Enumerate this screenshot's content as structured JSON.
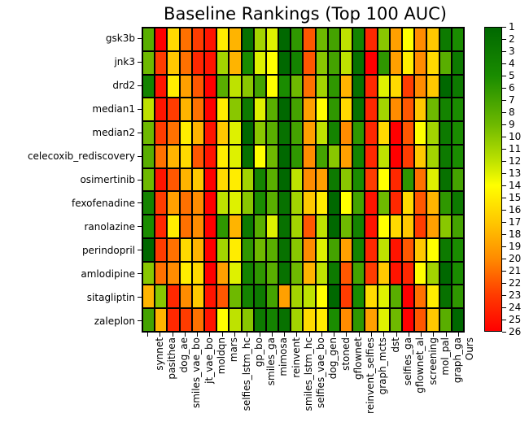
{
  "title": "Baseline Rankings (Top 100 AUC)",
  "chart_data": {
    "type": "heatmap",
    "title": "Baseline Rankings (Top 100 AUC)",
    "rows": [
      "gsk3b",
      "jnk3",
      "drd2",
      "median1",
      "median2",
      "celecoxib_rediscovery",
      "osimertinib",
      "fexofenadine",
      "ranolazine",
      "perindopril",
      "amlodipine",
      "sitagliptin",
      "zaleplon"
    ],
    "columns": [
      "synnet",
      "pasithea",
      "dog_ae",
      "smiles_vae_bo",
      "jt_vae_bo",
      "moldqn",
      "mars",
      "selfies_lstm_hc",
      "gp_bo",
      "smiles_ga",
      "mimosa",
      "reinvent",
      "smiles_lstm_hc",
      "selfies_vae_bo",
      "dog_gen",
      "stoned",
      "gflownet",
      "reinvent_selfies",
      "graph_mcts",
      "dst",
      "selfies_ga",
      "gflownet_al",
      "screening",
      "mol_pal",
      "graph_ga",
      "Ours"
    ],
    "values": [
      [
        8,
        26,
        16,
        21,
        23,
        25,
        15,
        18,
        2,
        11,
        13,
        1,
        6,
        22,
        9,
        7,
        12,
        4,
        24,
        10,
        19,
        14,
        20,
        17,
        3,
        5
      ],
      [
        9,
        23,
        17,
        21,
        24,
        25,
        11,
        18,
        5,
        13,
        14,
        1,
        4,
        22,
        10,
        7,
        12,
        2,
        26,
        6,
        19,
        15,
        20,
        16,
        8,
        3
      ],
      [
        4,
        25,
        15,
        19,
        22,
        26,
        8,
        12,
        10,
        7,
        14,
        5,
        9,
        21,
        11,
        6,
        18,
        2,
        24,
        13,
        16,
        23,
        20,
        17,
        1,
        3
      ],
      [
        12,
        25,
        23,
        18,
        21,
        26,
        15,
        10,
        3,
        13,
        8,
        1,
        7,
        19,
        14,
        6,
        16,
        2,
        24,
        11,
        20,
        22,
        17,
        9,
        4,
        5
      ],
      [
        9,
        23,
        21,
        15,
        18,
        25,
        17,
        13,
        1,
        10,
        8,
        2,
        7,
        19,
        12,
        4,
        20,
        6,
        24,
        16,
        26,
        22,
        14,
        11,
        3,
        5
      ],
      [
        8,
        21,
        18,
        16,
        22,
        25,
        15,
        13,
        2,
        14,
        9,
        1,
        6,
        20,
        7,
        10,
        19,
        4,
        24,
        12,
        26,
        23,
        17,
        11,
        3,
        5
      ],
      [
        9,
        25,
        22,
        18,
        17,
        26,
        16,
        15,
        11,
        4,
        8,
        1,
        12,
        20,
        19,
        3,
        10,
        5,
        23,
        14,
        24,
        6,
        21,
        13,
        2,
        7
      ],
      [
        4,
        23,
        19,
        21,
        20,
        26,
        12,
        13,
        10,
        5,
        8,
        2,
        11,
        17,
        15,
        1,
        14,
        7,
        25,
        9,
        24,
        16,
        22,
        18,
        6,
        3
      ],
      [
        5,
        24,
        15,
        21,
        20,
        26,
        6,
        18,
        3,
        8,
        13,
        2,
        11,
        22,
        12,
        1,
        9,
        4,
        25,
        14,
        16,
        17,
        23,
        19,
        10,
        7
      ],
      [
        1,
        23,
        21,
        16,
        18,
        26,
        11,
        15,
        6,
        9,
        8,
        2,
        10,
        20,
        13,
        7,
        19,
        4,
        24,
        12,
        25,
        22,
        17,
        14,
        3,
        5
      ],
      [
        10,
        21,
        20,
        15,
        16,
        26,
        19,
        13,
        4,
        6,
        8,
        2,
        9,
        18,
        12,
        3,
        22,
        7,
        23,
        17,
        25,
        24,
        14,
        11,
        1,
        5
      ],
      [
        18,
        10,
        24,
        20,
        17,
        25,
        22,
        9,
        4,
        3,
        7,
        19,
        11,
        12,
        14,
        1,
        23,
        5,
        16,
        13,
        8,
        26,
        21,
        15,
        2,
        6
      ],
      [
        7,
        18,
        24,
        23,
        21,
        25,
        14,
        12,
        10,
        3,
        4,
        2,
        11,
        16,
        15,
        5,
        20,
        6,
        19,
        13,
        9,
        26,
        22,
        17,
        8,
        1
      ]
    ],
    "colorbar": {
      "min": 1,
      "max": 26,
      "ticks": [
        1,
        2,
        3,
        4,
        5,
        6,
        7,
        8,
        9,
        10,
        11,
        12,
        13,
        14,
        15,
        16,
        17,
        18,
        19,
        20,
        21,
        22,
        23,
        24,
        25,
        26
      ],
      "position": "right"
    },
    "colormap": [
      {
        "t": 0.0,
        "color": "#006800"
      },
      {
        "t": 0.16,
        "color": "#1a8c00"
      },
      {
        "t": 0.32,
        "color": "#6eb900"
      },
      {
        "t": 0.44,
        "color": "#bee200"
      },
      {
        "t": 0.52,
        "color": "#ffff00"
      },
      {
        "t": 0.64,
        "color": "#ffc800"
      },
      {
        "t": 0.76,
        "color": "#ff8c00"
      },
      {
        "t": 0.88,
        "color": "#ff3c00"
      },
      {
        "t": 1.0,
        "color": "#ff0000"
      }
    ],
    "grid_line_color": "#000000",
    "background_color": "#ffffff"
  }
}
